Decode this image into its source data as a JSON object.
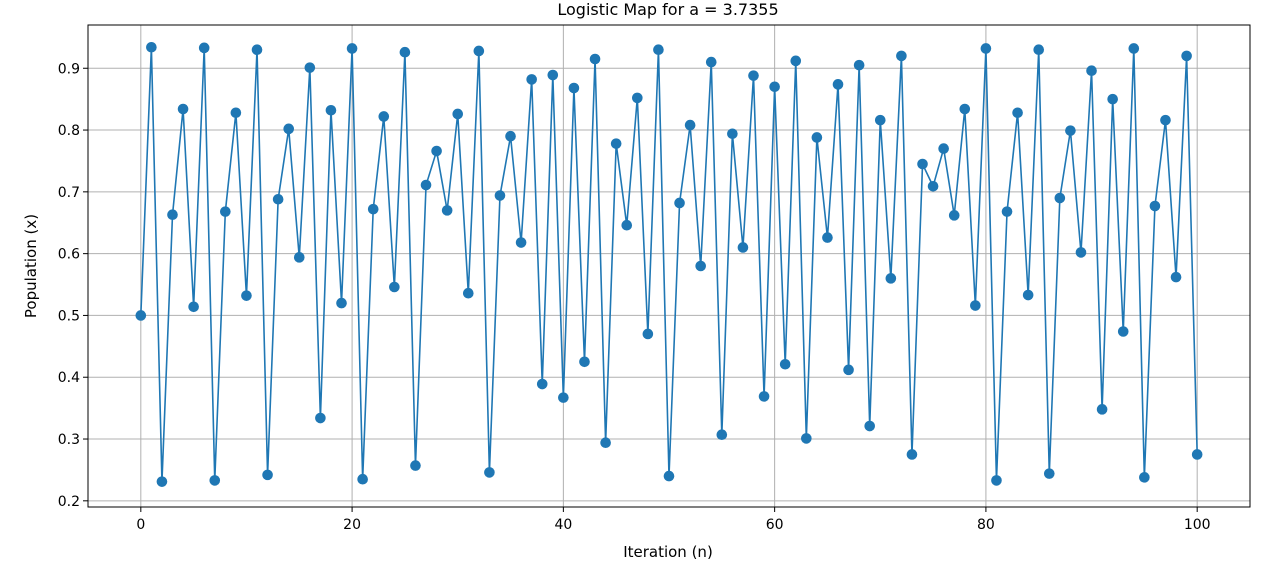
{
  "colors": {
    "line": "#1f77b4",
    "grid": "#b0b0b0",
    "axes": "#000000",
    "background": "#ffffff"
  },
  "chart_data": {
    "type": "line",
    "title": "Logistic Map for a = 3.7355",
    "xlabel": "Iteration (n)",
    "ylabel": "Population (x)",
    "xlim": [
      -5,
      105
    ],
    "ylim": [
      0.19,
      0.97
    ],
    "xticks": [
      0,
      20,
      40,
      60,
      80,
      100
    ],
    "yticks": [
      0.2,
      0.3,
      0.4,
      0.5,
      0.6,
      0.7,
      0.8,
      0.9
    ],
    "xtick_labels": [
      "0",
      "20",
      "40",
      "60",
      "80",
      "100"
    ],
    "ytick_labels": [
      "0.2",
      "0.3",
      "0.4",
      "0.5",
      "0.6",
      "0.7",
      "0.8",
      "0.9"
    ],
    "grid": true,
    "markers": "circle",
    "x": [
      0,
      1,
      2,
      3,
      4,
      5,
      6,
      7,
      8,
      9,
      10,
      11,
      12,
      13,
      14,
      15,
      16,
      17,
      18,
      19,
      20,
      21,
      22,
      23,
      24,
      25,
      26,
      27,
      28,
      29,
      30,
      31,
      32,
      33,
      34,
      35,
      36,
      37,
      38,
      39,
      40,
      41,
      42,
      43,
      44,
      45,
      46,
      47,
      48,
      49,
      50,
      51,
      52,
      53,
      54,
      55,
      56,
      57,
      58,
      59,
      60,
      61,
      62,
      63,
      64,
      65,
      66,
      67,
      68,
      69,
      70,
      71,
      72,
      73,
      74,
      75,
      76,
      77,
      78,
      79,
      80,
      81,
      82,
      83,
      84,
      85,
      86,
      87,
      88,
      89,
      90,
      91,
      92,
      93,
      94,
      95,
      96,
      97,
      98,
      99,
      100
    ],
    "y": [
      0.5,
      0.934,
      0.231,
      0.663,
      0.834,
      0.514,
      0.933,
      0.233,
      0.668,
      0.828,
      0.532,
      0.93,
      0.242,
      0.688,
      0.802,
      0.594,
      0.901,
      0.334,
      0.832,
      0.52,
      0.932,
      0.235,
      0.672,
      0.822,
      0.546,
      0.926,
      0.257,
      0.711,
      0.766,
      0.67,
      0.826,
      0.536,
      0.928,
      0.246,
      0.694,
      0.79,
      0.618,
      0.882,
      0.389,
      0.889,
      0.367,
      0.868,
      0.425,
      0.915,
      0.294,
      0.778,
      0.646,
      0.852,
      0.47,
      0.93,
      0.24,
      0.682,
      0.808,
      0.58,
      0.91,
      0.307,
      0.794,
      0.61,
      0.888,
      0.369,
      0.87,
      0.421,
      0.912,
      0.301,
      0.788,
      0.626,
      0.874,
      0.412,
      0.905,
      0.321,
      0.816,
      0.56,
      0.92,
      0.275,
      0.745,
      0.709,
      0.77,
      0.662,
      0.834,
      0.516,
      0.932,
      0.233,
      0.668,
      0.828,
      0.533,
      0.93,
      0.244,
      0.69,
      0.799,
      0.602,
      0.896,
      0.348,
      0.85,
      0.474,
      0.932,
      0.238,
      0.677,
      0.816,
      0.562,
      0.92,
      0.275
    ]
  }
}
